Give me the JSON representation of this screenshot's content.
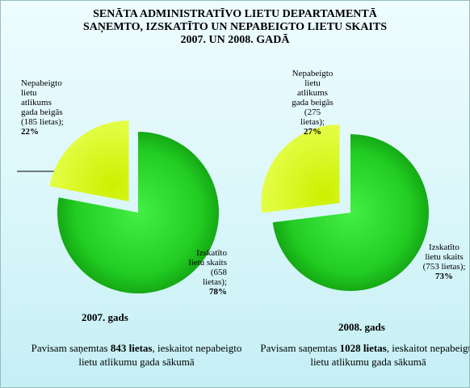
{
  "title_lines": [
    "SENĀTA ADMINISTRATĪVO LIETU DEPARTAMENTĀ",
    "SAŅEMTO, IZSKATĪTO UN NEPABEIGTO LIETU SKAITS",
    "2007. UN 2008. GADĀ"
  ],
  "chart_data": [
    {
      "type": "pie",
      "title": "2007. gads",
      "categories": [
        "Izskatīto lietu skaits (658 lietas);",
        "Nepabeigto lietu atlikums gada beigās (185 lietas);"
      ],
      "values": [
        78,
        22
      ],
      "value_labels": [
        "78%",
        "22%"
      ],
      "colors": [
        "#22cc22",
        "#ccf000"
      ],
      "note_prefix": "Pavisam saņemtas",
      "note_bold": "843 lietas",
      "note_suffix": ", ieskaitot nepabeigto lietu atlikumu gada sākumā"
    },
    {
      "type": "pie",
      "title": "2008. gads",
      "categories": [
        "Izskatīto lietu skaits (753 lietas);",
        "Nepabeigto lietu atlikums gada beigās (275 lietas);"
      ],
      "values": [
        73,
        27
      ],
      "value_labels": [
        "73%",
        "27%"
      ],
      "colors": [
        "#22cc22",
        "#ccf000"
      ],
      "note_prefix": "Pavisam saņemtas",
      "note_bold": "1028 lietas",
      "note_suffix": ", ieskaitot nepabeigto lietu atlikumu gada sākumā"
    }
  ]
}
